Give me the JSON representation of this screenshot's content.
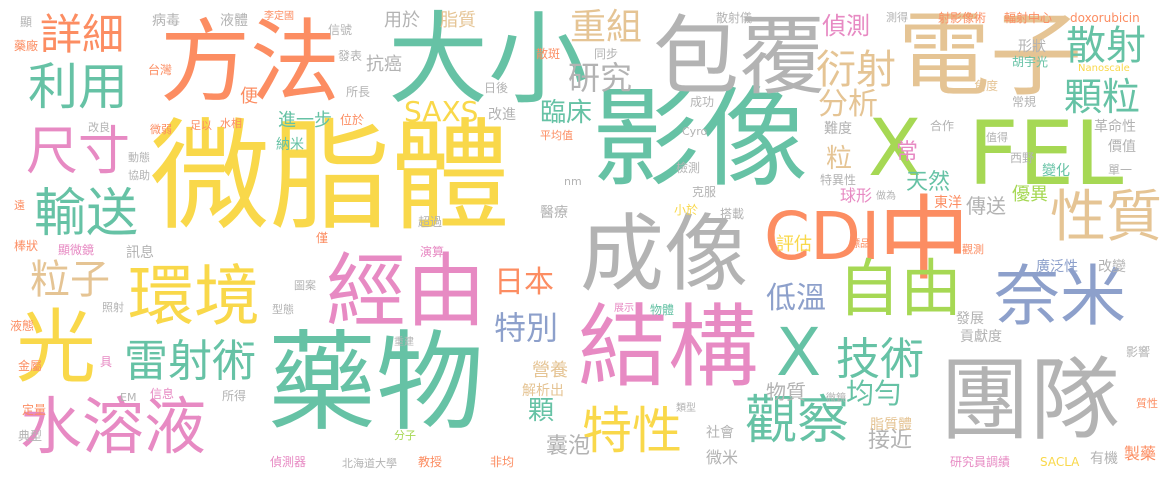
{
  "palette": {
    "yellow": "#f9d84a",
    "green": "#66c2a5",
    "orange": "#fc8d62",
    "blue": "#8da0cb",
    "pink": "#e78ac3",
    "lime": "#a6d854",
    "gray": "#b3b3b3",
    "tan": "#e5c494"
  },
  "words": [
    "微脂體",
    "影像",
    "藥物",
    "大小",
    "方法",
    "包覆",
    "電子",
    "結構",
    "成像",
    "團隊",
    "CDI",
    "中",
    "X",
    "FEL",
    "經由",
    "光",
    "環境",
    "水溶液",
    "自由",
    "奈米",
    "性質",
    "X",
    "輸送",
    "雷射術",
    "技術",
    "觀察",
    "特性",
    "尺寸",
    "利用",
    "詳細",
    "重組",
    "散射",
    "顆粒",
    "衍射",
    "分析",
    "粒子",
    "SAXS",
    "研究",
    "日本",
    "臨床",
    "特別",
    "偵測",
    "低溫",
    "評估",
    "均勻",
    "物質",
    "顆",
    "囊泡",
    "接近",
    "微米",
    "營養",
    "解析出",
    "常",
    "天然",
    "粒",
    "球形",
    "東洋",
    "傳送",
    "優異",
    "進一步",
    "用於",
    "抗癌",
    "脂質",
    "液體",
    "病毒",
    "李定國",
    "信號",
    "發表",
    "散斑",
    "同步",
    "散射儀",
    "測得",
    "射影像術",
    "輻射中心",
    "doxorubicin",
    "形狀",
    "胡宇光",
    "Nanoscale",
    "角度",
    "常規",
    "難度",
    "合作",
    "值得",
    "西野",
    "革命性",
    "價值",
    "變化",
    "單一",
    "廣泛性",
    "改變",
    "發展",
    "貢獻度",
    "脂質體",
    "社會",
    "物體",
    "小於",
    "克服",
    "搭載",
    "醫療",
    "成功",
    "平均值",
    "檢測",
    "改進",
    "Cyro",
    "nm",
    "特異性",
    "做為",
    "標品",
    "觀測",
    "影響",
    "質性",
    "製藥",
    "有機",
    "SACLA",
    "研究員調績",
    "非均",
    "教授",
    "北海道大學",
    "偵測器",
    "分子",
    "所得",
    "微鏡",
    "類型",
    "展示",
    "重建",
    "信息",
    "EM",
    "定量",
    "典型",
    "金屬",
    "具",
    "照射",
    "型態",
    "圖案",
    "液態",
    "演算",
    "超過",
    "僅",
    "訊息",
    "顯微鏡",
    "棒狀",
    "遠",
    "協助",
    "動態",
    "微弱",
    "足以",
    "水相",
    "位於",
    "納米",
    "改良",
    "便",
    "台灣",
    "所長",
    "日後",
    "藥廠",
    "顯"
  ]
}
